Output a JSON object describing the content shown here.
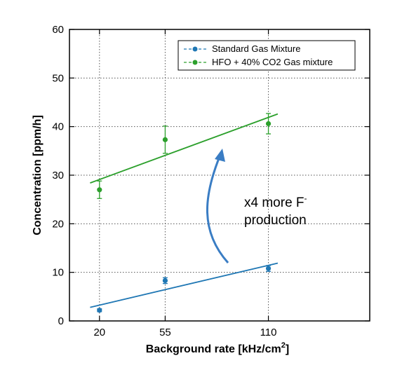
{
  "chart_data": {
    "type": "scatter",
    "xlabel": "Background rate [kHz/cm",
    "xlabel_sup": "2",
    "xlabel_end": "]",
    "ylabel": "Concentration [ppm/h]",
    "x_ticks": [
      20,
      55,
      110
    ],
    "y_ticks": [
      0,
      10,
      20,
      30,
      40,
      50,
      60
    ],
    "xlim": [
      4,
      164
    ],
    "ylim": [
      0,
      60
    ],
    "grid": true,
    "legend_position": "top-right",
    "series": [
      {
        "name": "Standard Gas Mixture",
        "color": "#1f77b4",
        "points": [
          {
            "x": 20,
            "y": 2.2,
            "err": 0.3
          },
          {
            "x": 55,
            "y": 8.3,
            "err": 0.6
          },
          {
            "x": 110,
            "y": 10.8,
            "err": 0.6
          }
        ],
        "fit": {
          "x": [
            15,
            115
          ],
          "y": [
            2.8,
            11.9
          ]
        }
      },
      {
        "name": "HFO + 40% CO2 Gas mixture",
        "color": "#2ca02c",
        "points": [
          {
            "x": 20,
            "y": 27.0,
            "err": 1.8
          },
          {
            "x": 55,
            "y": 37.3,
            "err": 2.8
          },
          {
            "x": 110,
            "y": 40.6,
            "err": 2.1
          }
        ],
        "fit": {
          "x": [
            15,
            115
          ],
          "y": [
            28.4,
            42.6
          ]
        }
      }
    ],
    "annotation": {
      "line1": "x4 more F",
      "line1_sup": "-",
      "line2": "production",
      "arrow_color": "#3a7dc4"
    }
  }
}
